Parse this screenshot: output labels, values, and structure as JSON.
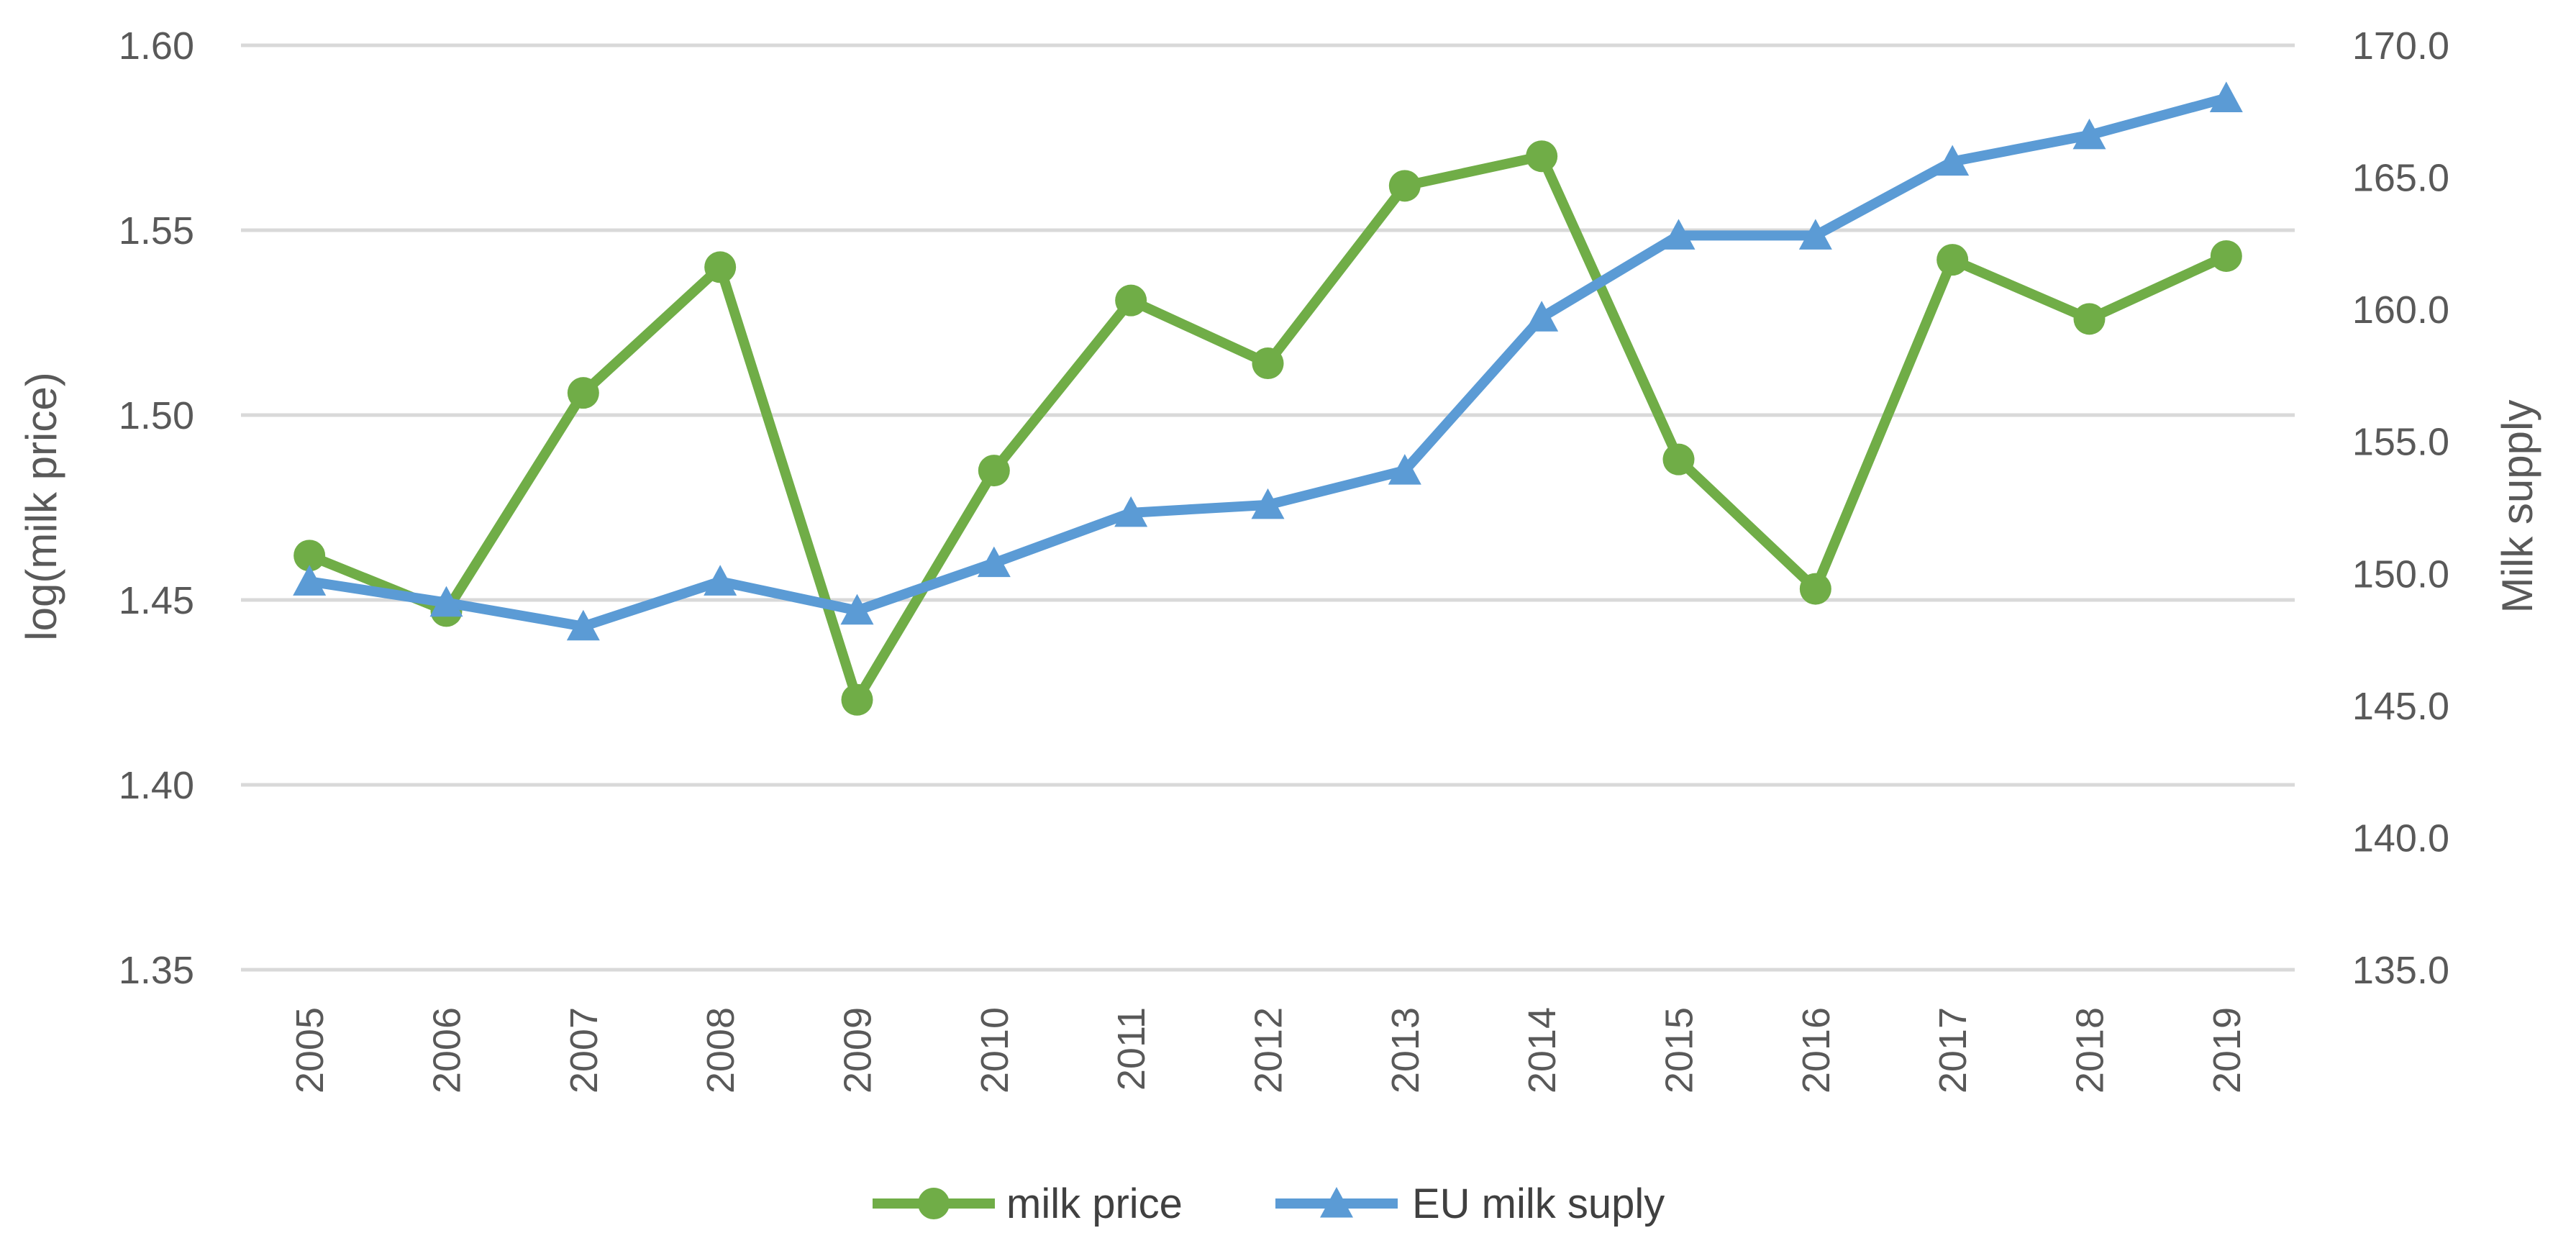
{
  "chart_data": {
    "type": "line",
    "title": "",
    "xlabel": "",
    "ylabel": "log(milk price)",
    "y2label": "Milk supply",
    "categories": [
      "2005",
      "2006",
      "2007",
      "2008",
      "2009",
      "2010",
      "2011",
      "2012",
      "2013",
      "2014",
      "2015",
      "2016",
      "2017",
      "2018",
      "2019"
    ],
    "ylim": [
      1.35,
      1.6
    ],
    "yticks": [
      "1.35",
      "1.40",
      "1.45",
      "1.50",
      "1.55",
      "1.60"
    ],
    "y2lim": [
      135.0,
      170.0
    ],
    "y2ticks": [
      "135.0",
      "140.0",
      "145.0",
      "150.0",
      "155.0",
      "160.0",
      "165.0",
      "170.0"
    ],
    "grid": true,
    "legend_position": "bottom-center",
    "series": [
      {
        "name": "milk price",
        "axis": "left",
        "color": "#70ad47",
        "marker": "circle",
        "values": [
          1.462,
          1.447,
          1.506,
          1.54,
          1.423,
          1.485,
          1.531,
          1.514,
          1.562,
          1.57,
          1.488,
          1.453,
          1.542,
          1.526,
          1.543
        ]
      },
      {
        "name": "EU milk suply",
        "axis": "right",
        "color": "#5b9bd5",
        "marker": "triangle",
        "values": [
          149.7,
          148.9,
          148.0,
          149.7,
          148.6,
          150.4,
          152.3,
          152.6,
          153.9,
          159.7,
          162.8,
          162.8,
          165.6,
          166.6,
          168.0
        ]
      }
    ]
  }
}
